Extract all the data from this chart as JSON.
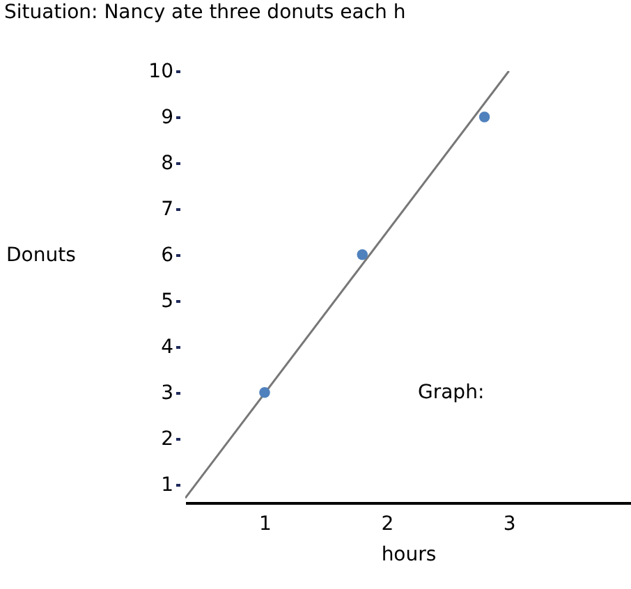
{
  "chart_data": {
    "type": "scatter",
    "title": "Situation:  Nancy ate three donuts each h",
    "xlabel": "hours",
    "ylabel": "Donuts",
    "annotations": [
      "Graph:"
    ],
    "xlim": [
      0.35,
      4.0
    ],
    "xticks": [
      1,
      2,
      3
    ],
    "ylim": [
      0.6,
      10
    ],
    "yticks": [
      1,
      2,
      3,
      4,
      5,
      6,
      7,
      8,
      9,
      10
    ],
    "grid": false,
    "series": [
      {
        "type": "line",
        "color": "#777777",
        "x": [
          0.35,
          3.0
        ],
        "values": [
          0.7,
          10
        ],
        "marker": "none",
        "line_style": "solid"
      },
      {
        "type": "scatter",
        "color": "#4f81bd",
        "x": [
          1,
          1.8,
          2.8
        ],
        "values": [
          3,
          6,
          9
        ],
        "marker": "circle"
      }
    ]
  }
}
